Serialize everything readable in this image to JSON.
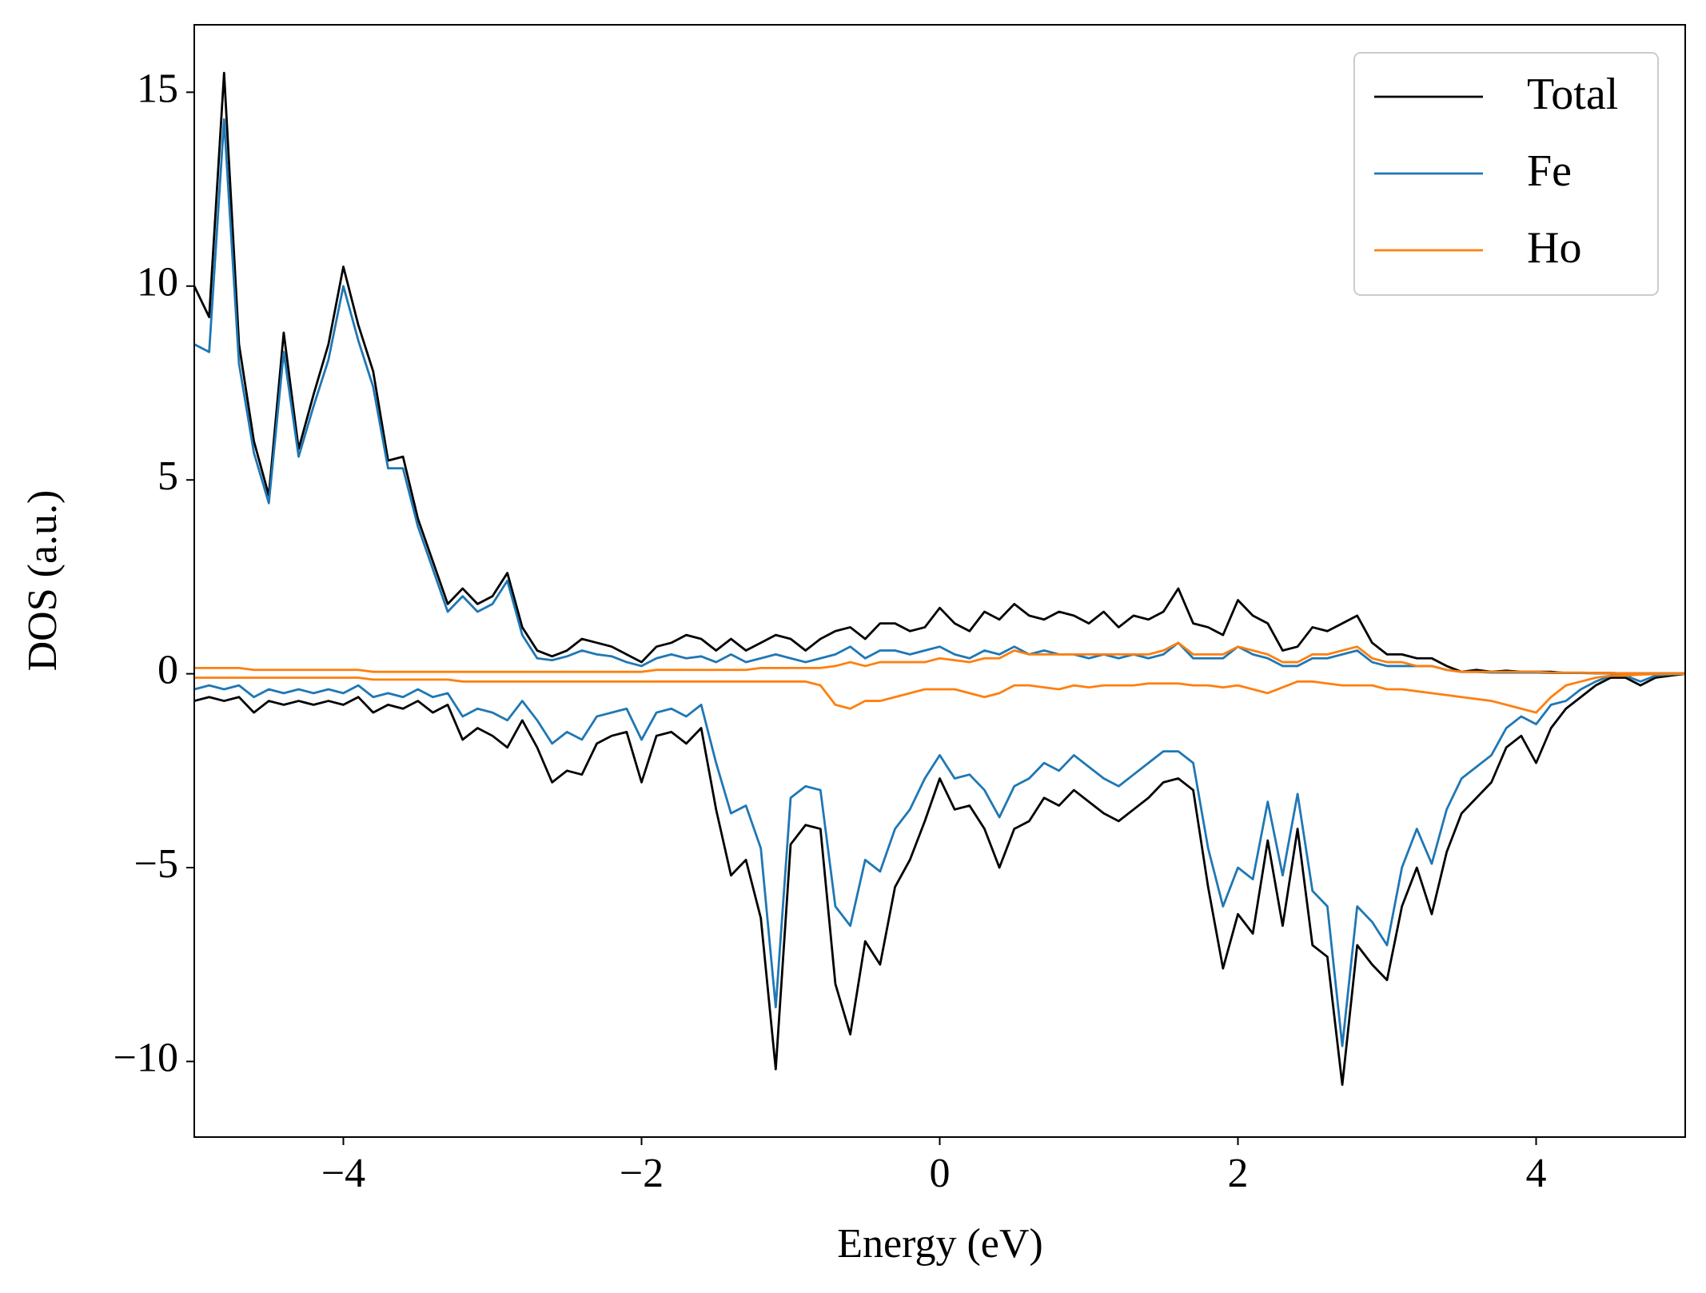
{
  "chart_data": {
    "type": "line",
    "xlabel": "Energy (eV)",
    "ylabel": "DOS (a.u.)",
    "x": [
      -5.0,
      -4.9,
      -4.8,
      -4.7,
      -4.6,
      -4.5,
      -4.4,
      -4.3,
      -4.2,
      -4.1,
      -4.0,
      -3.9,
      -3.8,
      -3.7,
      -3.6,
      -3.5,
      -3.4,
      -3.3,
      -3.2,
      -3.1,
      -3.0,
      -2.9,
      -2.8,
      -2.7,
      -2.6,
      -2.5,
      -2.4,
      -2.3,
      -2.2,
      -2.1,
      -2.0,
      -1.9,
      -1.8,
      -1.7,
      -1.6,
      -1.5,
      -1.4,
      -1.3,
      -1.2,
      -1.1,
      -1.0,
      -0.9,
      -0.8,
      -0.7,
      -0.6,
      -0.5,
      -0.4,
      -0.3,
      -0.2,
      -0.1,
      0,
      0.1,
      0.2,
      0.3,
      0.4,
      0.5,
      0.6,
      0.7,
      0.8,
      0.9,
      1.0,
      1.1,
      1.2,
      1.3,
      1.4,
      1.5,
      1.6,
      1.7,
      1.8,
      1.9,
      2.0,
      2.1,
      2.2,
      2.3,
      2.4,
      2.5,
      2.6,
      2.7,
      2.8,
      2.9,
      3.0,
      3.1,
      3.2,
      3.3,
      3.4,
      3.5,
      3.6,
      3.7,
      3.8,
      3.9,
      4.0,
      4.1,
      4.2,
      4.3,
      4.4,
      4.5,
      4.6,
      4.7,
      4.8,
      4.9,
      5.0
    ],
    "series": [
      {
        "name": "Total",
        "color": "#000000",
        "values": [
          10.0,
          9.2,
          15.5,
          8.5,
          6.0,
          4.6,
          8.8,
          5.8,
          7.2,
          8.5,
          10.5,
          9.0,
          7.8,
          5.5,
          5.6,
          4.0,
          2.9,
          1.8,
          2.2,
          1.8,
          2.0,
          2.6,
          1.2,
          0.6,
          0.45,
          0.6,
          0.9,
          0.8,
          0.7,
          0.5,
          0.3,
          0.7,
          0.8,
          1.0,
          0.9,
          0.6,
          0.9,
          0.6,
          0.8,
          1.0,
          0.9,
          0.6,
          0.9,
          1.1,
          1.2,
          0.9,
          1.3,
          1.3,
          1.1,
          1.2,
          1.7,
          1.3,
          1.1,
          1.6,
          1.4,
          1.8,
          1.5,
          1.4,
          1.6,
          1.5,
          1.3,
          1.6,
          1.2,
          1.5,
          1.4,
          1.6,
          2.2,
          1.3,
          1.2,
          1.0,
          1.9,
          1.5,
          1.3,
          0.6,
          0.7,
          1.2,
          1.1,
          1.3,
          1.5,
          0.8,
          0.5,
          0.5,
          0.4,
          0.4,
          0.2,
          0.05,
          0.1,
          0.05,
          0.08,
          0.05,
          0.05,
          0.05,
          0.02,
          0.02,
          0.02,
          0.02,
          0.01,
          0.01,
          0.01,
          0.01,
          0.01
        ],
        "values_down": [
          -0.7,
          -0.6,
          -0.7,
          -0.6,
          -1.0,
          -0.7,
          -0.8,
          -0.7,
          -0.8,
          -0.7,
          -0.8,
          -0.6,
          -1.0,
          -0.8,
          -0.9,
          -0.7,
          -1.0,
          -0.8,
          -1.7,
          -1.4,
          -1.6,
          -1.9,
          -1.2,
          -1.9,
          -2.8,
          -2.5,
          -2.6,
          -1.8,
          -1.6,
          -1.5,
          -2.8,
          -1.6,
          -1.5,
          -1.8,
          -1.4,
          -3.5,
          -5.2,
          -4.8,
          -6.3,
          -10.2,
          -4.4,
          -3.9,
          -4.0,
          -8.0,
          -9.3,
          -6.9,
          -7.5,
          -5.5,
          -4.8,
          -3.8,
          -2.7,
          -3.5,
          -3.4,
          -4.0,
          -5.0,
          -4.0,
          -3.8,
          -3.2,
          -3.4,
          -3.0,
          -3.3,
          -3.6,
          -3.8,
          -3.5,
          -3.2,
          -2.8,
          -2.7,
          -3.0,
          -5.5,
          -7.6,
          -6.2,
          -6.7,
          -4.3,
          -6.5,
          -4.0,
          -7.0,
          -7.3,
          -10.6,
          -7.0,
          -7.5,
          -7.9,
          -6.0,
          -5.0,
          -6.2,
          -4.6,
          -3.6,
          -3.2,
          -2.8,
          -1.9,
          -1.6,
          -2.3,
          -1.4,
          -0.9,
          -0.6,
          -0.3,
          -0.1,
          -0.1,
          -0.3,
          -0.1,
          -0.05,
          0
        ]
      },
      {
        "name": "Fe",
        "color": "#1f77b4",
        "values": [
          8.5,
          8.3,
          14.3,
          8.0,
          5.7,
          4.4,
          8.3,
          5.6,
          6.9,
          8.1,
          10.0,
          8.6,
          7.4,
          5.3,
          5.3,
          3.8,
          2.7,
          1.6,
          2.0,
          1.6,
          1.8,
          2.4,
          1.0,
          0.4,
          0.35,
          0.45,
          0.6,
          0.5,
          0.45,
          0.3,
          0.2,
          0.4,
          0.5,
          0.4,
          0.45,
          0.3,
          0.5,
          0.3,
          0.4,
          0.5,
          0.4,
          0.3,
          0.4,
          0.5,
          0.7,
          0.4,
          0.6,
          0.6,
          0.5,
          0.6,
          0.7,
          0.5,
          0.4,
          0.6,
          0.5,
          0.7,
          0.5,
          0.6,
          0.5,
          0.5,
          0.4,
          0.5,
          0.4,
          0.5,
          0.4,
          0.5,
          0.8,
          0.4,
          0.4,
          0.4,
          0.7,
          0.5,
          0.4,
          0.2,
          0.2,
          0.4,
          0.4,
          0.5,
          0.6,
          0.3,
          0.2,
          0.2,
          0.2,
          0.2,
          0.1,
          0.05,
          0.05,
          0.03,
          0.03,
          0.03,
          0.03,
          0.02,
          0.02,
          0.02,
          0.01,
          0.01,
          0.01,
          0.01,
          0.01,
          0.01,
          0.01
        ],
        "values_down": [
          -0.4,
          -0.3,
          -0.4,
          -0.3,
          -0.6,
          -0.4,
          -0.5,
          -0.4,
          -0.5,
          -0.4,
          -0.5,
          -0.3,
          -0.6,
          -0.5,
          -0.6,
          -0.4,
          -0.6,
          -0.5,
          -1.1,
          -0.9,
          -1.0,
          -1.2,
          -0.7,
          -1.2,
          -1.8,
          -1.5,
          -1.7,
          -1.1,
          -1.0,
          -0.9,
          -1.7,
          -1.0,
          -0.9,
          -1.1,
          -0.8,
          -2.3,
          -3.6,
          -3.4,
          -4.5,
          -8.6,
          -3.2,
          -2.9,
          -3.0,
          -6.0,
          -6.5,
          -4.8,
          -5.1,
          -4.0,
          -3.5,
          -2.7,
          -2.1,
          -2.7,
          -2.6,
          -3.0,
          -3.7,
          -2.9,
          -2.7,
          -2.3,
          -2.5,
          -2.1,
          -2.4,
          -2.7,
          -2.9,
          -2.6,
          -2.3,
          -2.0,
          -2.0,
          -2.3,
          -4.5,
          -6.0,
          -5.0,
          -5.3,
          -3.3,
          -5.2,
          -3.1,
          -5.6,
          -6.0,
          -9.6,
          -6.0,
          -6.4,
          -7.0,
          -5.0,
          -4.0,
          -4.9,
          -3.5,
          -2.7,
          -2.4,
          -2.1,
          -1.4,
          -1.1,
          -1.3,
          -0.8,
          -0.7,
          -0.4,
          -0.2,
          -0.05,
          -0.05,
          -0.2,
          -0.05,
          -0.02,
          0
        ]
      },
      {
        "name": "Ho",
        "color": "#ff7f0e",
        "values": [
          0.15,
          0.15,
          0.15,
          0.15,
          0.1,
          0.1,
          0.1,
          0.1,
          0.1,
          0.1,
          0.1,
          0.1,
          0.05,
          0.05,
          0.05,
          0.05,
          0.05,
          0.05,
          0.05,
          0.05,
          0.05,
          0.05,
          0.05,
          0.05,
          0.05,
          0.05,
          0.05,
          0.05,
          0.05,
          0.05,
          0.05,
          0.1,
          0.1,
          0.1,
          0.1,
          0.1,
          0.1,
          0.1,
          0.15,
          0.15,
          0.15,
          0.15,
          0.15,
          0.2,
          0.3,
          0.2,
          0.3,
          0.3,
          0.3,
          0.3,
          0.4,
          0.35,
          0.3,
          0.4,
          0.4,
          0.6,
          0.5,
          0.5,
          0.5,
          0.5,
          0.5,
          0.5,
          0.5,
          0.5,
          0.5,
          0.6,
          0.8,
          0.5,
          0.5,
          0.5,
          0.7,
          0.6,
          0.5,
          0.3,
          0.3,
          0.5,
          0.5,
          0.6,
          0.7,
          0.4,
          0.3,
          0.3,
          0.2,
          0.2,
          0.1,
          0.05,
          0.05,
          0.05,
          0.05,
          0.05,
          0.05,
          0.03,
          0.03,
          0.03,
          0.02,
          0.02,
          0.01,
          0.01,
          0.01,
          0.01,
          0.01
        ],
        "values_down": [
          -0.1,
          -0.1,
          -0.1,
          -0.1,
          -0.1,
          -0.1,
          -0.1,
          -0.1,
          -0.1,
          -0.1,
          -0.1,
          -0.1,
          -0.15,
          -0.15,
          -0.15,
          -0.15,
          -0.15,
          -0.15,
          -0.2,
          -0.2,
          -0.2,
          -0.2,
          -0.2,
          -0.2,
          -0.2,
          -0.2,
          -0.2,
          -0.2,
          -0.2,
          -0.2,
          -0.2,
          -0.2,
          -0.2,
          -0.2,
          -0.2,
          -0.2,
          -0.2,
          -0.2,
          -0.2,
          -0.2,
          -0.2,
          -0.2,
          -0.3,
          -0.8,
          -0.9,
          -0.7,
          -0.7,
          -0.6,
          -0.5,
          -0.4,
          -0.4,
          -0.4,
          -0.5,
          -0.6,
          -0.5,
          -0.3,
          -0.3,
          -0.35,
          -0.4,
          -0.3,
          -0.35,
          -0.3,
          -0.3,
          -0.3,
          -0.25,
          -0.25,
          -0.25,
          -0.3,
          -0.3,
          -0.35,
          -0.3,
          -0.4,
          -0.5,
          -0.35,
          -0.2,
          -0.2,
          -0.25,
          -0.3,
          -0.3,
          -0.3,
          -0.4,
          -0.4,
          -0.45,
          -0.5,
          -0.55,
          -0.6,
          -0.65,
          -0.7,
          -0.8,
          -0.9,
          -1.0,
          -0.6,
          -0.3,
          -0.2,
          -0.1,
          -0.05,
          -0.05,
          -0.02,
          -0.01,
          0,
          0
        ]
      }
    ],
    "xlim": [
      -5,
      5
    ],
    "xticks": [
      {
        "value": -4,
        "label": "−4"
      },
      {
        "value": -2,
        "label": "−2"
      },
      0,
      2,
      4
    ],
    "ylim": [
      -11.95,
      16.74
    ],
    "yticks": [
      {
        "value": -10,
        "label": "−10"
      },
      {
        "value": -5,
        "label": "−5"
      },
      0,
      5,
      10,
      15
    ],
    "legend": "upper right",
    "grid": false
  }
}
